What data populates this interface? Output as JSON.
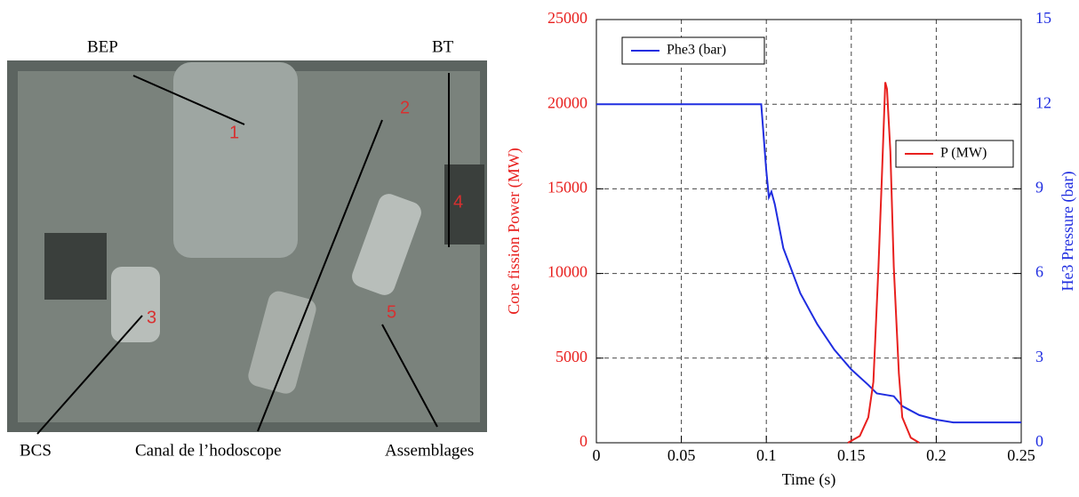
{
  "photo": {
    "captions": [
      "BEP",
      "BT",
      "BCS",
      "Canal de l’hodoscope",
      "Assemblages"
    ],
    "markers": [
      "1",
      "2",
      "3",
      "4",
      "5"
    ]
  },
  "chart_data": {
    "type": "line",
    "x_label": "Time (s)",
    "y_label": "Core fission Power (MW)",
    "y2_label": "He3 Pressure (bar)",
    "xlim": [
      0,
      0.25
    ],
    "xticks": [
      0,
      0.05,
      0.1,
      0.15,
      0.2,
      0.25
    ],
    "ylim": [
      0,
      25000
    ],
    "yticks": [
      0,
      5000,
      10000,
      15000,
      20000,
      25000
    ],
    "y2lim": [
      0,
      15
    ],
    "y2ticks": [
      0,
      3,
      6,
      9,
      12,
      15
    ],
    "grid": true,
    "y_color": "#e8201e",
    "y2_color": "#1f2de0",
    "series": [
      {
        "name": "Phe3 (bar)",
        "color": "#1f2de0",
        "axis": "y2",
        "x": [
          0,
          0.097,
          0.0999,
          0.1015,
          0.103,
          0.105,
          0.11,
          0.12,
          0.13,
          0.14,
          0.15,
          0.16,
          0.165,
          0.17,
          0.175,
          0.18,
          0.19,
          0.2,
          0.21,
          0.25
        ],
        "values": [
          12,
          12,
          9.7,
          8.7,
          8.9,
          8.45,
          6.9,
          5.3,
          4.2,
          3.3,
          2.6,
          2.05,
          1.75,
          1.7,
          1.65,
          1.3,
          0.98,
          0.82,
          0.72,
          0.72
        ]
      },
      {
        "name": "P (MW)",
        "color": "#e8201e",
        "x": [
          0.148,
          0.155,
          0.16,
          0.163,
          0.166,
          0.168,
          0.17,
          0.171,
          0.173,
          0.175,
          0.178,
          0.18,
          0.185,
          0.19
        ],
        "values": [
          0,
          400,
          1500,
          3600,
          10400,
          15700,
          21300,
          20900,
          17200,
          10400,
          4100,
          1500,
          300,
          0
        ]
      }
    ]
  }
}
